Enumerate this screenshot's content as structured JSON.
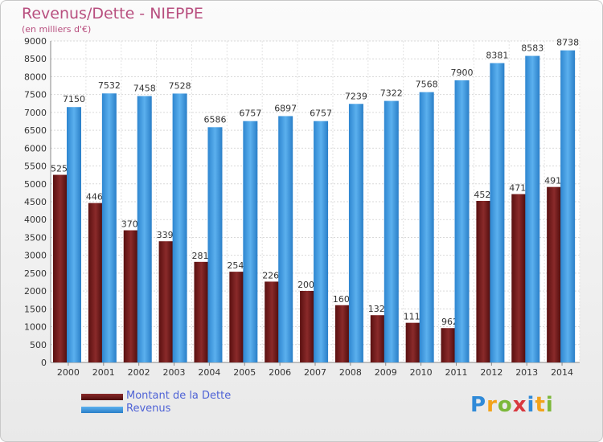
{
  "header": {
    "title": "Revenus/Dette - NIEPPE",
    "subtitle": "(en milliers d'€)"
  },
  "legend": {
    "items": [
      {
        "label": "Montant de la Dette",
        "color": "#6b1a1a"
      },
      {
        "label": "Revenus",
        "color": "#3d96dd"
      }
    ]
  },
  "logo": {
    "text": "Proxiti"
  },
  "chart_data": {
    "type": "bar",
    "title": "Revenus/Dette - NIEPPE",
    "subtitle": "(en milliers d'€)",
    "categories": [
      "2000",
      "2001",
      "2002",
      "2003",
      "2004",
      "2005",
      "2006",
      "2007",
      "2008",
      "2009",
      "2010",
      "2011",
      "2012",
      "2013",
      "2014"
    ],
    "series": [
      {
        "name": "Montant de la Dette",
        "color": "#7a2020",
        "values": [
          5253,
          4463,
          3700,
          3393,
          2816,
          2540,
          2263,
          2003,
          1603,
          1323,
          1110,
          962,
          4523,
          4713,
          4913
        ],
        "labels": [
          "5253",
          "4463",
          "3700",
          "3393",
          "2816",
          "2540",
          "2263",
          "2003",
          "1603",
          "1323",
          "1110",
          "962",
          "4523",
          "4713",
          "4913"
        ]
      },
      {
        "name": "Revenus",
        "color": "#3d96dd",
        "values": [
          7150,
          7532,
          7458,
          7528,
          6586,
          6757,
          6897,
          6757,
          7239,
          7322,
          7568,
          7900,
          8381,
          8583,
          8738
        ],
        "labels": [
          "7150",
          "7532",
          "7458",
          "7528",
          "6586",
          "6757",
          "6897",
          "6757",
          "7239",
          "7322",
          "7568",
          "7900",
          "8381",
          "8583",
          "8738"
        ]
      }
    ],
    "ylim": [
      0,
      9000
    ],
    "yticks": [
      "0",
      "500",
      "1000",
      "1500",
      "2000",
      "2500",
      "3000",
      "3500",
      "4000",
      "4500",
      "5000",
      "5500",
      "6000",
      "6500",
      "7000",
      "7500",
      "8000",
      "8500",
      "9000"
    ],
    "grid": true,
    "legend_position": "bottom-left"
  }
}
